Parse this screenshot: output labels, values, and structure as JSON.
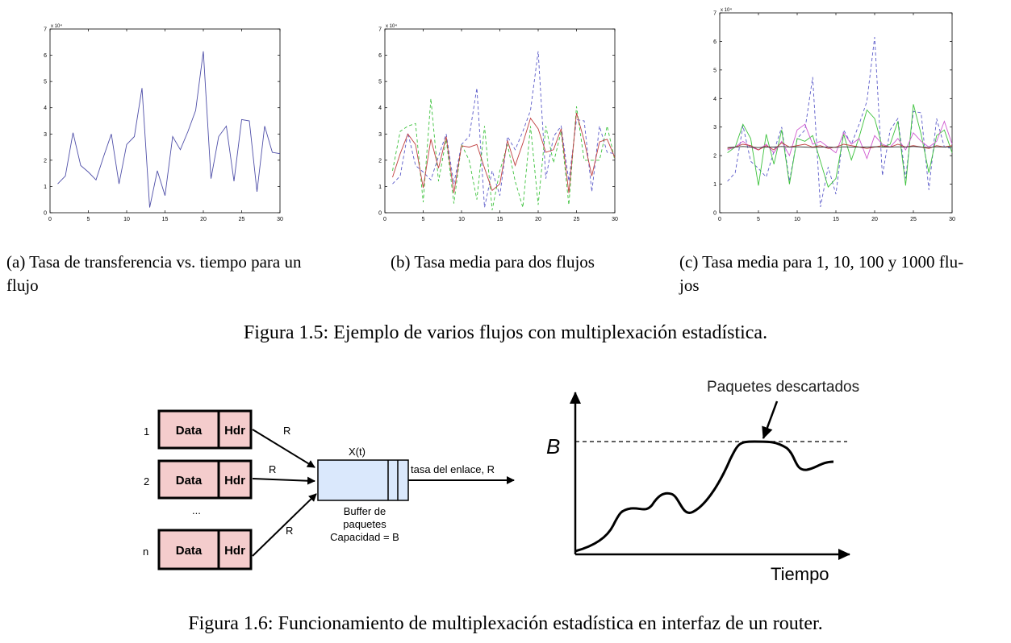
{
  "chart_data": [
    {
      "type": "line",
      "title": "",
      "exponent_label": "x 10⁴",
      "xlim": [
        0,
        30
      ],
      "ylim": [
        0,
        7
      ],
      "xticks": [
        "0",
        "5",
        "10",
        "15",
        "20",
        "25",
        "30"
      ],
      "yticks": [
        "0",
        "1",
        "2",
        "3",
        "4",
        "5",
        "6",
        "7"
      ],
      "series": [
        {
          "color": "#4f4fa8",
          "style": "solid",
          "x": [
            1,
            2,
            3,
            4,
            5,
            6,
            7,
            8,
            9,
            10,
            11,
            12,
            13,
            14,
            15,
            16,
            17,
            18,
            19,
            20,
            21,
            22,
            23,
            24,
            25,
            26,
            27,
            28,
            29,
            30
          ],
          "y": [
            1.1,
            1.4,
            3.05,
            1.8,
            1.55,
            1.25,
            2.15,
            3.0,
            1.1,
            2.6,
            2.9,
            4.75,
            0.2,
            1.6,
            0.65,
            2.9,
            2.4,
            3.1,
            3.9,
            6.15,
            1.3,
            2.9,
            3.3,
            1.2,
            3.55,
            3.5,
            0.8,
            3.3,
            2.3,
            2.25
          ]
        }
      ]
    },
    {
      "type": "line",
      "title": "",
      "exponent_label": "x 10⁴",
      "xlim": [
        0,
        30
      ],
      "ylim": [
        0,
        7
      ],
      "xticks": [
        "0",
        "5",
        "10",
        "15",
        "20",
        "25",
        "30"
      ],
      "yticks": [
        "0",
        "1",
        "2",
        "3",
        "4",
        "5",
        "6",
        "7"
      ],
      "series": [
        {
          "color": "#5b5bc9",
          "style": "dashed",
          "x": [
            1,
            2,
            3,
            4,
            5,
            6,
            7,
            8,
            9,
            10,
            11,
            12,
            13,
            14,
            15,
            16,
            17,
            18,
            19,
            20,
            21,
            22,
            23,
            24,
            25,
            26,
            27,
            28,
            29,
            30
          ],
          "y": [
            1.1,
            1.4,
            3.05,
            1.8,
            1.55,
            1.25,
            2.15,
            3.0,
            1.1,
            2.6,
            2.9,
            4.75,
            0.2,
            1.6,
            0.65,
            2.9,
            2.4,
            3.1,
            3.9,
            6.15,
            1.3,
            2.9,
            3.3,
            1.2,
            3.55,
            3.5,
            0.8,
            3.3,
            2.3,
            2.25
          ]
        },
        {
          "color": "#3cc23c",
          "style": "dashed",
          "x": [
            1,
            2,
            3,
            4,
            5,
            6,
            7,
            8,
            9,
            10,
            11,
            12,
            13,
            14,
            15,
            16,
            17,
            18,
            19,
            20,
            21,
            22,
            23,
            24,
            25,
            26,
            27,
            28,
            29,
            30
          ],
          "y": [
            1.6,
            3.1,
            3.3,
            3.4,
            0.4,
            4.35,
            1.2,
            2.8,
            0.35,
            2.6,
            2.0,
            0.5,
            3.3,
            0.1,
            1.6,
            2.6,
            1.2,
            0.2,
            3.3,
            0.3,
            3.3,
            1.9,
            3.1,
            0.3,
            4.05,
            2.0,
            2.0,
            2.0,
            3.3,
            2.0
          ]
        },
        {
          "color": "#c04040",
          "style": "solid",
          "x": [
            1,
            2,
            3,
            4,
            5,
            6,
            7,
            8,
            9,
            10,
            11,
            12,
            13,
            14,
            15,
            16,
            17,
            18,
            19,
            20,
            21,
            22,
            23,
            24,
            25,
            26,
            27,
            28,
            29,
            30
          ],
          "y": [
            1.35,
            2.25,
            3.0,
            2.6,
            0.95,
            2.8,
            1.7,
            2.9,
            0.75,
            2.55,
            2.5,
            2.6,
            1.7,
            0.85,
            1.1,
            2.75,
            1.8,
            2.65,
            3.6,
            3.2,
            2.3,
            2.4,
            3.2,
            0.75,
            3.8,
            2.75,
            1.4,
            2.7,
            2.8,
            2.1
          ]
        }
      ]
    },
    {
      "type": "line",
      "title": "",
      "exponent_label": "x 10⁴",
      "xlim": [
        0,
        30
      ],
      "ylim": [
        0,
        7
      ],
      "xticks": [
        "0",
        "5",
        "10",
        "15",
        "20",
        "25",
        "30"
      ],
      "yticks": [
        "0",
        "1",
        "2",
        "3",
        "4",
        "5",
        "6",
        "7"
      ],
      "series": [
        {
          "color": "#5b5bc9",
          "style": "dashed",
          "x": [
            1,
            2,
            3,
            4,
            5,
            6,
            7,
            8,
            9,
            10,
            11,
            12,
            13,
            14,
            15,
            16,
            17,
            18,
            19,
            20,
            21,
            22,
            23,
            24,
            25,
            26,
            27,
            28,
            29,
            30
          ],
          "y": [
            1.1,
            1.4,
            3.05,
            1.8,
            1.55,
            1.25,
            2.15,
            3.0,
            1.1,
            2.6,
            2.9,
            4.75,
            0.2,
            1.6,
            0.65,
            2.9,
            2.4,
            3.1,
            3.9,
            6.15,
            1.3,
            2.9,
            3.3,
            1.2,
            3.55,
            3.5,
            0.8,
            3.3,
            2.3,
            2.25
          ]
        },
        {
          "color": "#3cc23c",
          "style": "solid",
          "x": [
            1,
            2,
            3,
            4,
            5,
            6,
            7,
            8,
            9,
            10,
            11,
            12,
            13,
            14,
            15,
            16,
            17,
            18,
            19,
            20,
            21,
            22,
            23,
            24,
            25,
            26,
            27,
            28,
            29,
            30
          ],
          "y": [
            2.1,
            2.3,
            3.1,
            2.6,
            0.95,
            2.75,
            1.7,
            2.9,
            1.0,
            2.6,
            2.5,
            2.7,
            1.8,
            0.9,
            1.2,
            2.75,
            1.85,
            2.65,
            3.6,
            3.3,
            2.3,
            2.4,
            3.2,
            0.95,
            3.8,
            2.75,
            1.4,
            2.7,
            2.9,
            2.1
          ]
        },
        {
          "color": "#d05ad0",
          "style": "solid",
          "x": [
            1,
            2,
            3,
            4,
            5,
            6,
            7,
            8,
            9,
            10,
            11,
            12,
            13,
            14,
            15,
            16,
            17,
            18,
            19,
            20,
            21,
            22,
            23,
            24,
            25,
            26,
            27,
            28,
            29,
            30
          ],
          "y": [
            2.2,
            2.3,
            2.5,
            2.3,
            2.2,
            2.4,
            2.1,
            2.5,
            2.0,
            2.9,
            3.1,
            2.4,
            2.5,
            2.3,
            2.1,
            2.8,
            2.4,
            2.6,
            1.9,
            2.7,
            2.4,
            2.3,
            2.6,
            2.2,
            2.8,
            2.5,
            2.3,
            2.5,
            3.2,
            2.4
          ]
        },
        {
          "color": "#c04040",
          "style": "solid",
          "x": [
            1,
            2,
            3,
            4,
            5,
            6,
            7,
            8,
            9,
            10,
            11,
            12,
            13,
            14,
            15,
            16,
            17,
            18,
            19,
            20,
            21,
            22,
            23,
            24,
            25,
            26,
            27,
            28,
            29,
            30
          ],
          "y": [
            2.25,
            2.3,
            2.4,
            2.35,
            2.2,
            2.35,
            2.2,
            2.45,
            2.3,
            2.35,
            2.4,
            2.3,
            2.35,
            2.25,
            2.3,
            2.4,
            2.35,
            2.3,
            2.25,
            2.3,
            2.35,
            2.3,
            2.4,
            2.3,
            2.35,
            2.3,
            2.25,
            2.35,
            2.3,
            2.35
          ]
        },
        {
          "color": "#333333",
          "style": "solid",
          "x": [
            1,
            2,
            3,
            4,
            5,
            6,
            7,
            8,
            9,
            10,
            11,
            12,
            13,
            14,
            15,
            16,
            17,
            18,
            19,
            20,
            21,
            22,
            23,
            24,
            25,
            26,
            27,
            28,
            29,
            30
          ],
          "y": [
            2.28,
            2.3,
            2.32,
            2.3,
            2.28,
            2.3,
            2.3,
            2.32,
            2.3,
            2.31,
            2.3,
            2.29,
            2.3,
            2.3,
            2.29,
            2.31,
            2.3,
            2.3,
            2.3,
            2.31,
            2.3,
            2.3,
            2.31,
            2.3,
            2.32,
            2.3,
            2.29,
            2.31,
            2.3,
            2.31
          ]
        }
      ]
    }
  ],
  "fig15": {
    "subcaption_a_line1": "(a) Tasa de transferencia vs. tiempo para un",
    "subcaption_a_line2": "flujo",
    "subcaption_b": "(b) Tasa media para dos flujos",
    "subcaption_c_line1": "(c) Tasa media para 1, 10, 100 y 1000 flu-",
    "subcaption_c_line2": "jos",
    "caption": "Figura 1.5: Ejemplo de varios flujos con multiplexación estadística."
  },
  "fig16": {
    "flows": [
      {
        "index": "1",
        "data": "Data",
        "hdr": "Hdr",
        "rate": "R"
      },
      {
        "index": "2",
        "data": "Data",
        "hdr": "Hdr",
        "rate": "R"
      },
      {
        "index": "n",
        "data": "Data",
        "hdr": "Hdr",
        "rate": "R"
      }
    ],
    "ellipsis": "...",
    "queue_label": "X(t)",
    "link_label": "tasa del enlace, R",
    "buffer_line1": "Buffer de",
    "buffer_line2": "paquetes",
    "buffer_line3": "Capacidad = B",
    "graph_b_label": "B",
    "graph_drops_label": "Paquetes descartados",
    "graph_x_label": "Tiempo",
    "caption": "Figura 1.6: Funcionamiento de multiplexación estadística en interfaz de un router.",
    "colors": {
      "packet_fill": "#f4cccc",
      "buffer_fill": "#dae8fc"
    }
  }
}
